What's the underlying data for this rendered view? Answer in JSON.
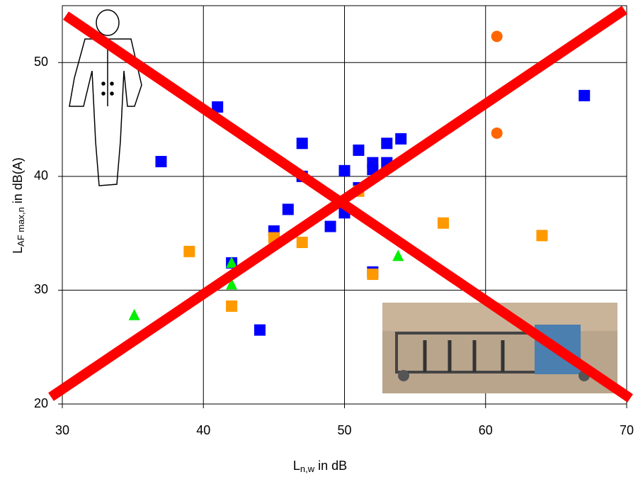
{
  "chart_data": {
    "type": "scatter",
    "xlabel": {
      "main": "L",
      "sub": "n,w",
      "rest": "  in dB"
    },
    "ylabel": {
      "main": "L",
      "sub": "AF max,n",
      "rest": " in dB(A)"
    },
    "xlim": [
      30,
      70
    ],
    "ylim": [
      20,
      55
    ],
    "xticks": [
      30,
      40,
      50,
      60,
      70
    ],
    "yticks": [
      20,
      30,
      40,
      50
    ],
    "grid": true,
    "series": [
      {
        "marker": "square",
        "color": "#0000ff",
        "x": [
          67,
          41,
          37,
          47,
          47,
          46,
          45,
          42,
          44,
          49,
          50,
          50,
          51,
          51,
          52,
          52,
          53,
          53,
          54,
          52
        ],
        "y": [
          47.1,
          46.1,
          41.3,
          42.9,
          40,
          37.1,
          35.2,
          32.4,
          26.5,
          35.6,
          40.5,
          36.8,
          42.3,
          39,
          41.2,
          40.6,
          42.9,
          41.2,
          43.3,
          31.6
        ]
      },
      {
        "marker": "square",
        "color": "#ff9900",
        "x": [
          39,
          45,
          47,
          42,
          51,
          52,
          57,
          64
        ],
        "y": [
          33.4,
          34.6,
          34.2,
          28.6,
          38.7,
          31.4,
          35.9,
          34.8
        ]
      },
      {
        "marker": "circle",
        "color": "#ff6600",
        "x": [
          60.8,
          60.8
        ],
        "y": [
          52.3,
          43.8
        ]
      },
      {
        "marker": "triangle",
        "color": "#00ee00",
        "x": [
          35.1,
          42,
          42,
          53.8
        ],
        "y": [
          27.8,
          32.4,
          30.5,
          33
        ]
      }
    ]
  }
}
